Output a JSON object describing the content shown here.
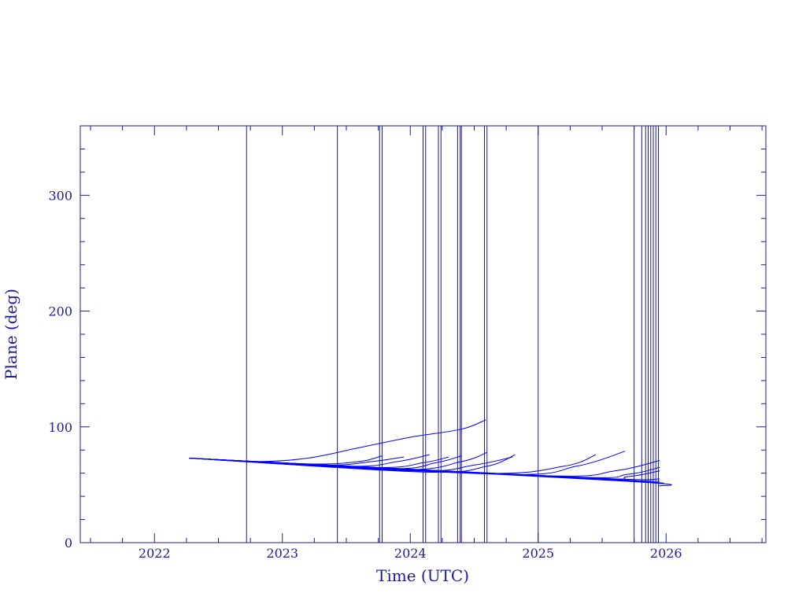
{
  "chart_data": {
    "type": "line",
    "title": "",
    "xlabel": "Time (UTC)",
    "ylabel": "Plane (deg)",
    "xlim": [
      2021.42,
      2026.78
    ],
    "ylim": [
      0,
      360
    ],
    "x_ticks": [
      2022,
      2023,
      2024,
      2025,
      2026
    ],
    "x_tick_labels": [
      "2022",
      "2023",
      "2024",
      "2025",
      "2026"
    ],
    "y_ticks": [
      0,
      100,
      200,
      300
    ],
    "y_tick_labels": [
      "0",
      "100",
      "200",
      "300"
    ],
    "grid": false,
    "legend": "none",
    "color": "#0000ff",
    "frame_color": "#1a1aa0",
    "vertical_markers": [
      2022.72,
      2023.43,
      2023.76,
      2023.78,
      2024.1,
      2024.12,
      2024.22,
      2024.24,
      2024.37,
      2024.39,
      2024.4,
      2024.58,
      2024.6,
      2025.0,
      2025.75,
      2025.81,
      2025.84,
      2025.86,
      2025.88,
      2025.9,
      2025.92,
      2025.94
    ],
    "series": [
      {
        "x": [
          2022.27,
          2022.8,
          2023.2,
          2023.6,
          2024.0,
          2024.4,
          2024.59
        ],
        "y": [
          73,
          70,
          73,
          82,
          91,
          98,
          106
        ]
      },
      {
        "x": [
          2022.27,
          2023.2,
          2023.6,
          2023.78
        ],
        "y": [
          73,
          68,
          70,
          75
        ]
      },
      {
        "x": [
          2022.27,
          2023.3,
          2023.7,
          2023.95
        ],
        "y": [
          73,
          67,
          70,
          74
        ]
      },
      {
        "x": [
          2022.27,
          2023.5,
          2023.9,
          2024.15
        ],
        "y": [
          73,
          66,
          70,
          76
        ]
      },
      {
        "x": [
          2022.27,
          2023.7,
          2024.1,
          2024.3
        ],
        "y": [
          73,
          65,
          69,
          74
        ]
      },
      {
        "x": [
          2022.27,
          2023.8,
          2024.2,
          2024.4
        ],
        "y": [
          73,
          64,
          69,
          75
        ]
      },
      {
        "x": [
          2022.27,
          2023.9,
          2024.4,
          2024.6
        ],
        "y": [
          73,
          63,
          70,
          78
        ]
      },
      {
        "x": [
          2022.27,
          2024.0,
          2024.5,
          2024.8
        ],
        "y": [
          73,
          62,
          67,
          74
        ]
      },
      {
        "x": [
          2022.27,
          2024.1,
          2024.6,
          2024.82
        ],
        "y": [
          73,
          61,
          66,
          76
        ]
      },
      {
        "x": [
          2022.27,
          2024.5,
          2025.2,
          2025.45
        ],
        "y": [
          73,
          60,
          66,
          76
        ]
      },
      {
        "x": [
          2022.27,
          2024.7,
          2025.3,
          2025.68
        ],
        "y": [
          73,
          59,
          66,
          79
        ]
      },
      {
        "x": [
          2022.27,
          2025.0,
          2025.6,
          2025.95
        ],
        "y": [
          73,
          58,
          62,
          71
        ]
      },
      {
        "x": [
          2022.27,
          2025.2,
          2025.7,
          2025.95
        ],
        "y": [
          73,
          57,
          59,
          65
        ]
      },
      {
        "x": [
          2022.27,
          2025.3,
          2025.7,
          2025.95
        ],
        "y": [
          73,
          56,
          57,
          62
        ]
      },
      {
        "x": [
          2022.27,
          2025.4,
          2025.95
        ],
        "y": [
          73,
          56,
          55
        ]
      },
      {
        "x": [
          2022.27,
          2025.5,
          2025.95
        ],
        "y": [
          73,
          55,
          53
        ]
      },
      {
        "x": [
          2022.27,
          2025.6,
          2025.95
        ],
        "y": [
          73,
          54,
          51
        ]
      },
      {
        "x": [
          2022.27,
          2025.7,
          2025.95
        ],
        "y": [
          73,
          53,
          49
        ]
      }
    ]
  }
}
